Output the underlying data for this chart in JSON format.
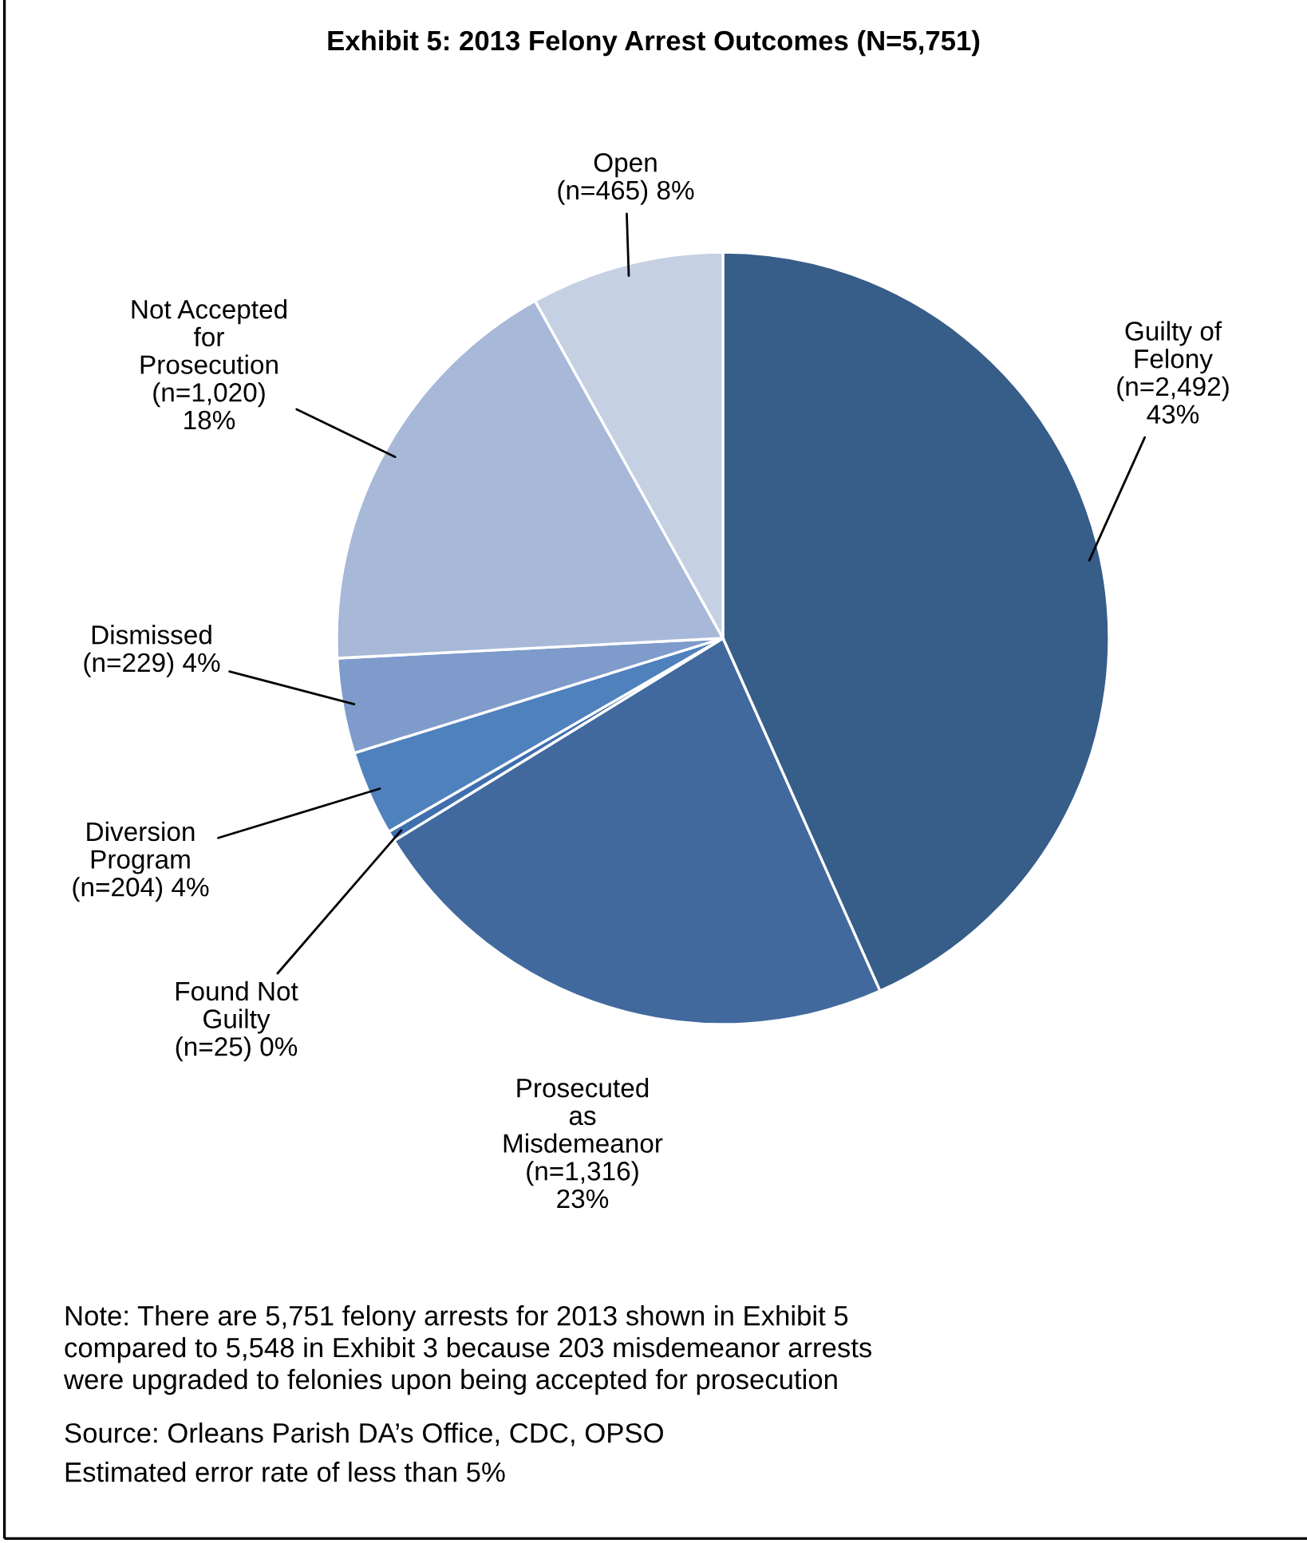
{
  "chart_data": {
    "type": "pie",
    "title": "Exhibit 5: 2013 Felony Arrest Outcomes (N=5,751)",
    "categories": [
      "Guilty of\nFelony",
      "Prosecuted\nas\nMisdemeanor",
      "Found Not\nGuilty",
      "Diversion\nProgram",
      "Dismissed",
      "Not Accepted\nfor\nProsecution",
      "Open"
    ],
    "values": [
      2492,
      1316,
      25,
      204,
      229,
      1020,
      465
    ],
    "value_labels": [
      "(n=2,492)\n43%",
      "(n=1,316)\n23%",
      "(n=25) 0%",
      "(n=204) 4%",
      "(n=229) 4%",
      "(n=1,020)\n18%",
      "(n=465) 8%"
    ],
    "colors": [
      "#375d89",
      "#41699e",
      "#3f6fae",
      "#4f81bd",
      "#7e9bcb",
      "#a7b8d8",
      "#c6d0e3"
    ],
    "annotations": [
      "Note: There are 5,751 felony arrests for 2013 shown in Exhibit 5\ncompared to 5,548 in Exhibit 3 because 203 misdemeanor arrests\nwere upgraded to felonies upon being accepted for prosecution",
      "Source: Orleans Parish DA’s Office, CDC, OPSO",
      "Estimated error rate of less than 5%"
    ],
    "legend": false
  }
}
